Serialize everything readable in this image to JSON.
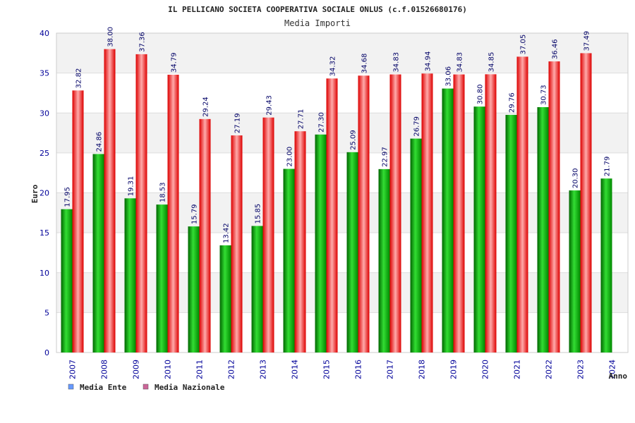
{
  "chart_data": {
    "type": "bar",
    "title": "IL PELLICANO SOCIETA COOPERATIVA SOCIALE ONLUS (c.f.01526680176)",
    "subtitle": "Media Importi",
    "ylabel": "Euro",
    "xlabel": "Anno",
    "ylim": [
      0,
      40
    ],
    "yticks": [
      "0",
      "5",
      "10",
      "15",
      "20",
      "25",
      "30",
      "35",
      "40"
    ],
    "categories": [
      "2007",
      "2008",
      "2009",
      "2010",
      "2011",
      "2012",
      "2013",
      "2014",
      "2015",
      "2016",
      "2017",
      "2018",
      "2019",
      "2020",
      "2021",
      "2022",
      "2023",
      "2024"
    ],
    "series": [
      {
        "name": "Media Ente",
        "color": "#00a000",
        "legend_color": "#6699ff",
        "values": [
          17.95,
          24.86,
          19.31,
          18.53,
          15.79,
          13.42,
          15.85,
          23.0,
          27.3,
          25.09,
          22.97,
          26.79,
          33.06,
          30.8,
          29.76,
          30.73,
          20.3,
          21.79
        ],
        "labels": [
          "17.95",
          "24.86",
          "19.31",
          "18.53",
          "15.79",
          "13.42",
          "15.85",
          "23.00",
          "27.30",
          "25.09",
          "22.97",
          "26.79",
          "33.06",
          "30.80",
          "29.76",
          "30.73",
          "20.30",
          "21.79"
        ]
      },
      {
        "name": "Media Nazionale",
        "color": "#e00000",
        "legend_color": "#cc6699",
        "values": [
          32.82,
          38.0,
          37.36,
          34.79,
          29.24,
          27.19,
          29.43,
          27.71,
          34.32,
          34.68,
          34.83,
          34.94,
          34.83,
          34.85,
          37.05,
          36.46,
          37.49,
          null
        ],
        "labels": [
          "32.82",
          "38.00",
          "37.36",
          "34.79",
          "29.24",
          "27.19",
          "29.43",
          "27.71",
          "34.32",
          "34.68",
          "34.83",
          "34.94",
          "34.83",
          "34.85",
          "37.05",
          "36.46",
          "37.49",
          ""
        ]
      }
    ],
    "grid": true,
    "legend_position": "bottom-left"
  }
}
